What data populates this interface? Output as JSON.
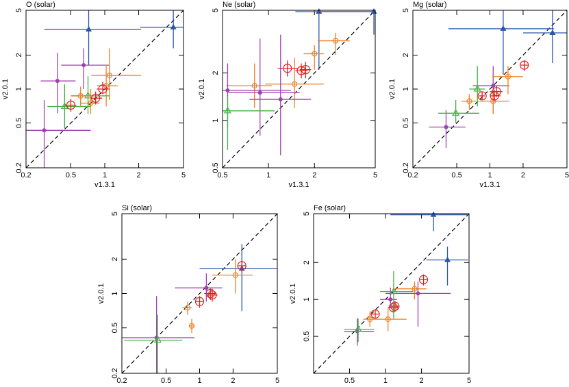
{
  "chart_data": [
    {
      "type": "scatter",
      "title": "O (solar)",
      "xlabel": "v1.3.1",
      "ylabel": "v2.0.1",
      "log_x": true,
      "log_y": true,
      "diagonal": true,
      "xlim": [
        0.2,
        5
      ],
      "ylim": [
        0.2,
        5
      ],
      "xticks": [
        0.2,
        0.5,
        1,
        2,
        5
      ],
      "yticks": [
        0.2,
        0.5,
        1,
        2,
        5
      ],
      "series": [
        {
          "color": "#2c55a8",
          "marker": "filled-triangle",
          "x": [
            0.72,
            4.06
          ],
          "values": [
            3.38,
            3.53
          ],
          "x_low": [
            0.29,
            2.06
          ],
          "x_high": [
            2.1,
            5
          ],
          "y_low": [
            1.64,
            2.3
          ],
          "y_high": [
            5,
            5
          ]
        },
        {
          "color": "#a040b0",
          "marker": "filled-circle",
          "x": [
            0.65,
            0.38,
            0.29
          ],
          "values": [
            1.63,
            1.18,
            0.43
          ],
          "x_low": [
            0.41,
            0.27,
            0.2
          ],
          "x_high": [
            1.1,
            0.55,
            0.75
          ],
          "y_low": [
            1.0,
            0.61,
            0.2
          ],
          "y_high": [
            2.3,
            2.1,
            0.8
          ]
        },
        {
          "color": "#44b044",
          "marker": "open-triangle",
          "x": [
            0.44,
            0.71
          ],
          "values": [
            0.7,
            0.87
          ],
          "x_low": [
            0.31,
            0.5
          ],
          "x_high": [
            0.75,
            1.1
          ],
          "y_low": [
            0.45,
            0.6
          ],
          "y_high": [
            1.1,
            1.3
          ]
        },
        {
          "color": "#f08020",
          "marker": "open-circle",
          "x": [
            1.1,
            0.61,
            1.03,
            0.75
          ],
          "values": [
            1.32,
            0.87,
            1.07,
            0.75
          ],
          "x_low": [
            0.76,
            0.5,
            0.85,
            0.6
          ],
          "x_high": [
            2.1,
            0.75,
            1.3,
            0.9
          ],
          "y_low": [
            0.8,
            0.7,
            0.7,
            0.6
          ],
          "y_high": [
            2.3,
            1.05,
            1.6,
            1.0
          ]
        },
        {
          "color": "#e02020",
          "marker": "large-circle",
          "x": [
            0.5,
            0.96,
            0.83
          ],
          "values": [
            0.72,
            1.0,
            0.83
          ],
          "x_low": [
            0.44,
            0.85,
            0.75
          ],
          "x_high": [
            0.56,
            1.1,
            0.95
          ],
          "y_low": [
            0.63,
            0.9,
            0.73
          ],
          "y_high": [
            0.82,
            1.15,
            0.95
          ]
        }
      ]
    },
    {
      "type": "scatter",
      "title": "Ne (solar)",
      "xlabel": "v1.3.1",
      "ylabel": "v2.0.1",
      "log_x": true,
      "log_y": true,
      "diagonal": true,
      "xlim": [
        0.5,
        5
      ],
      "ylim": [
        0.5,
        5
      ],
      "xticks": [
        0.5,
        1,
        2,
        5
      ],
      "yticks": [
        0.5,
        1,
        2,
        5
      ],
      "series": [
        {
          "color": "#2c55a8",
          "marker": "filled-triangle",
          "x": [
            2.14,
            4.9
          ],
          "values": [
            4.9,
            4.9
          ],
          "x_low": [
            2.14,
            1.5
          ],
          "x_high": [
            5,
            5
          ],
          "y_low": [
            2.1,
            3.5
          ],
          "y_high": [
            5,
            5
          ]
        },
        {
          "color": "#f08020",
          "marker": "open-circle",
          "x": [
            2.75,
            2.0,
            0.81,
            1.48
          ],
          "values": [
            3.2,
            2.65,
            1.66,
            1.7
          ],
          "x_low": [
            2.1,
            1.7,
            0.53,
            0.95
          ],
          "x_high": [
            3.4,
            2.3,
            1.05,
            2.3
          ],
          "y_low": [
            2.6,
            2.1,
            1.2,
            1.2
          ],
          "y_high": [
            3.6,
            3.0,
            2.3,
            2.5
          ]
        },
        {
          "color": "#e02020",
          "marker": "large-circle",
          "x": [
            1.33,
            1.64,
            1.75
          ],
          "values": [
            2.14,
            2.07,
            2.1
          ],
          "x_low": [
            1.15,
            1.5,
            1.6
          ],
          "x_high": [
            1.55,
            1.8,
            1.9
          ],
          "y_low": [
            1.9,
            1.85,
            1.85
          ],
          "y_high": [
            2.4,
            2.3,
            2.35
          ]
        },
        {
          "color": "#a040b0",
          "marker": "filled-circle",
          "x": [
            0.54,
            0.88,
            1.2
          ],
          "values": [
            1.55,
            1.5,
            1.36
          ],
          "x_low": [
            0.5,
            0.55,
            0.75
          ],
          "x_high": [
            1.4,
            1.6,
            1.9
          ],
          "y_low": [
            0.9,
            0.8,
            0.6
          ],
          "y_high": [
            2.3,
            3.3,
            3.5
          ]
        },
        {
          "color": "#44b044",
          "marker": "open-triangle",
          "x": [
            0.54
          ],
          "values": [
            1.15
          ],
          "x_low": [
            0.5
          ],
          "x_high": [
            1.1
          ],
          "y_low": [
            0.65
          ],
          "y_high": [
            1.4
          ]
        }
      ]
    },
    {
      "type": "scatter",
      "title": "Mg (solar)",
      "xlabel": "v1.3.1",
      "ylabel": "v2.0.1",
      "log_x": true,
      "log_y": true,
      "diagonal": true,
      "xlim": [
        0.2,
        5
      ],
      "ylim": [
        0.2,
        5
      ],
      "xticks": [
        0.2,
        0.5,
        1,
        2,
        5
      ],
      "yticks": [
        0.2,
        0.5,
        1,
        2,
        5
      ],
      "series": [
        {
          "color": "#2c55a8",
          "marker": "filled-triangle",
          "x": [
            1.32,
            3.7
          ],
          "values": [
            3.43,
            3.15
          ],
          "x_low": [
            0.42,
            2.0
          ],
          "x_high": [
            3.8,
            5
          ],
          "y_low": [
            1.35,
            1.7
          ],
          "y_high": [
            5,
            5
          ]
        },
        {
          "color": "#a040b0",
          "marker": "filled-circle",
          "x": [
            1.07,
            0.4
          ],
          "values": [
            1.07,
            0.46
          ],
          "x_low": [
            0.7,
            0.28
          ],
          "x_high": [
            1.5,
            0.6
          ],
          "y_low": [
            0.6,
            0.3
          ],
          "y_high": [
            1.6,
            0.65
          ]
        },
        {
          "color": "#44b044",
          "marker": "open-triangle",
          "x": [
            0.49,
            0.77
          ],
          "values": [
            0.61,
            1.0
          ],
          "x_low": [
            0.34,
            0.65
          ],
          "x_high": [
            0.8,
            0.9
          ],
          "y_low": [
            0.5,
            0.7
          ],
          "y_high": [
            0.8,
            1.6
          ]
        },
        {
          "color": "#f08020",
          "marker": "open-circle",
          "x": [
            1.46,
            0.65,
            1.07
          ],
          "values": [
            1.29,
            0.78,
            0.78
          ],
          "x_low": [
            1.05,
            0.55,
            0.8
          ],
          "x_high": [
            2.0,
            0.75,
            1.5
          ],
          "y_low": [
            0.9,
            0.65,
            0.6
          ],
          "y_high": [
            1.6,
            0.9,
            1.0
          ]
        },
        {
          "color": "#e02020",
          "marker": "large-circle",
          "x": [
            2.05,
            1.1,
            0.85,
            1.15
          ],
          "values": [
            1.63,
            0.87,
            0.87,
            0.95
          ],
          "x_low": [
            1.9,
            1.0,
            0.8,
            1.0
          ],
          "x_high": [
            2.25,
            1.25,
            0.9,
            1.3
          ],
          "y_low": [
            1.45,
            0.78,
            0.8,
            0.85
          ],
          "y_high": [
            1.8,
            0.98,
            0.95,
            1.07
          ]
        }
      ]
    },
    {
      "type": "scatter",
      "title": "Si (solar)",
      "xlabel": "v1.3.1",
      "ylabel": "v2.0.1",
      "log_x": true,
      "log_y": true,
      "diagonal": true,
      "xlim": [
        0.2,
        5
      ],
      "ylim": [
        0.2,
        5
      ],
      "xticks": [
        0.2,
        0.5,
        1,
        2,
        5
      ],
      "yticks": [
        0.2,
        0.5,
        1,
        2,
        5
      ],
      "series": [
        {
          "color": "#2c55a8",
          "marker": "filled-triangle",
          "x": [
            2.4
          ],
          "values": [
            1.65
          ],
          "x_low": [
            1.0
          ],
          "x_high": [
            5
          ],
          "y_low": [
            0.7
          ],
          "y_high": [
            2.7
          ]
        },
        {
          "color": "#e02020",
          "marker": "large-circle",
          "x": [
            2.4,
            1.25,
            1.0,
            1.3
          ],
          "values": [
            1.75,
            1.0,
            0.85,
            0.97
          ],
          "x_low": [
            2.2,
            1.1,
            0.93,
            1.15
          ],
          "x_high": [
            2.6,
            1.4,
            1.08,
            1.45
          ],
          "y_low": [
            1.55,
            0.88,
            0.75,
            0.85
          ],
          "y_high": [
            1.95,
            1.12,
            0.95,
            1.1
          ]
        },
        {
          "color": "#f08020",
          "marker": "open-circle",
          "x": [
            2.1,
            0.78,
            0.85
          ],
          "values": [
            1.45,
            0.75,
            0.52
          ],
          "x_low": [
            1.3,
            0.7,
            0.8
          ],
          "x_high": [
            3.0,
            0.85,
            0.9
          ],
          "y_low": [
            1.0,
            0.65,
            0.45
          ],
          "y_high": [
            2.0,
            0.85,
            0.6
          ]
        },
        {
          "color": "#a040b0",
          "marker": "filled-circle",
          "x": [
            1.15,
            0.41
          ],
          "values": [
            1.12,
            0.41
          ],
          "x_low": [
            0.6,
            0.2
          ],
          "x_high": [
            1.6,
            0.9
          ],
          "y_low": [
            0.85,
            0.2
          ],
          "y_high": [
            1.5,
            0.95
          ]
        },
        {
          "color": "#44b044",
          "marker": "open-triangle",
          "x": [
            0.42
          ],
          "values": [
            0.39
          ],
          "x_low": [
            0.21
          ],
          "x_high": [
            0.7
          ],
          "y_low": [
            0.2
          ],
          "y_high": [
            0.65
          ]
        }
      ]
    },
    {
      "type": "scatter",
      "title": "Fe (solar)",
      "xlabel": "v1.3.1",
      "ylabel": "v2.0.1",
      "log_x": true,
      "log_y": true,
      "diagonal": true,
      "xlim": [
        0.25,
        5
      ],
      "ylim": [
        0.25,
        5
      ],
      "xticks": [
        0.5,
        1,
        2,
        5
      ],
      "yticks": [
        0.5,
        1,
        2,
        5
      ],
      "series": [
        {
          "color": "#2c55a8",
          "marker": "filled-triangle",
          "x": [
            2.52,
            3.3
          ],
          "values": [
            4.9,
            2.1
          ],
          "x_low": [
            1.1,
            2.2
          ],
          "x_high": [
            5,
            4.9
          ],
          "y_low": [
            3.6,
            1.3
          ],
          "y_high": [
            5,
            2.7
          ]
        },
        {
          "color": "#e02020",
          "marker": "large-circle",
          "x": [
            2.08,
            1.16,
            0.82,
            1.2
          ],
          "values": [
            1.45,
            0.86,
            0.76,
            0.88
          ],
          "x_low": [
            1.95,
            1.05,
            0.76,
            1.1
          ],
          "x_high": [
            2.25,
            1.28,
            0.88,
            1.3
          ],
          "y_low": [
            1.3,
            0.78,
            0.7,
            0.8
          ],
          "y_high": [
            1.6,
            0.95,
            0.83,
            0.97
          ]
        },
        {
          "color": "#f08020",
          "marker": "open-circle",
          "x": [
            1.75,
            0.74,
            1.05
          ],
          "values": [
            1.22,
            0.69,
            0.69
          ],
          "x_low": [
            1.2,
            0.65,
            0.85
          ],
          "x_high": [
            2.2,
            0.85,
            1.5
          ],
          "y_low": [
            1.0,
            0.6,
            0.55
          ],
          "y_high": [
            1.4,
            0.8,
            0.85
          ]
        },
        {
          "color": "#a040b0",
          "marker": "filled-circle",
          "x": [
            1.87,
            1.1,
            0.58
          ],
          "values": [
            1.12,
            1.0,
            0.55
          ],
          "x_low": [
            1.0,
            0.9,
            0.45
          ],
          "x_high": [
            3.5,
            1.25,
            0.8
          ],
          "y_low": [
            0.6,
            0.85,
            0.42
          ],
          "y_high": [
            1.4,
            1.25,
            0.7
          ]
        },
        {
          "color": "#44b044",
          "marker": "open-triangle",
          "x": [
            1.17,
            0.59
          ],
          "values": [
            1.16,
            0.57
          ],
          "x_low": [
            0.9,
            0.45
          ],
          "x_high": [
            1.7,
            0.8
          ],
          "y_low": [
            0.7,
            0.45
          ],
          "y_high": [
            1.7,
            0.7
          ]
        }
      ]
    }
  ]
}
